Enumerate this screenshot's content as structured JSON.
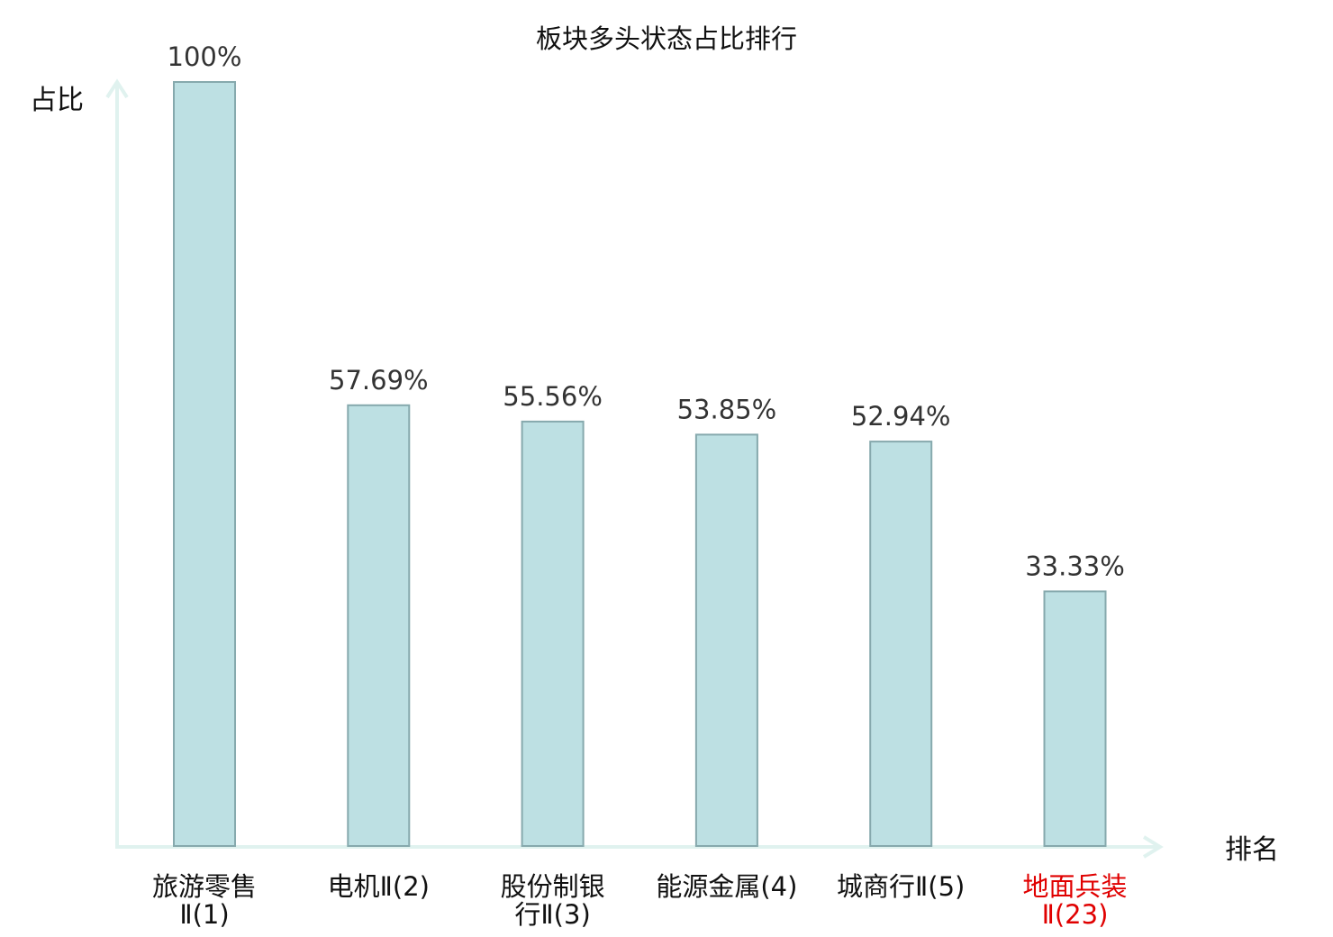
{
  "chart_data": {
    "type": "bar",
    "title": "板块多头状态占比排行",
    "ylabel": "占比",
    "xlabel": "排名",
    "ylim": [
      0,
      100
    ],
    "grid": false,
    "categories": [
      {
        "lines": [
          "旅游零售",
          "Ⅱ(1)"
        ],
        "highlight": false
      },
      {
        "lines": [
          "电机Ⅱ(2)"
        ],
        "highlight": false
      },
      {
        "lines": [
          "股份制银",
          "行Ⅱ(3)"
        ],
        "highlight": false
      },
      {
        "lines": [
          "能源金属(4)"
        ],
        "highlight": false
      },
      {
        "lines": [
          "城商行Ⅱ(5)"
        ],
        "highlight": false
      },
      {
        "lines": [
          "地面兵装",
          "Ⅱ(23)"
        ],
        "highlight": true
      }
    ],
    "values": [
      100,
      57.69,
      55.56,
      53.85,
      52.94,
      33.33
    ],
    "data_labels": [
      "100%",
      "57.69%",
      "55.56%",
      "53.85%",
      "52.94%",
      "33.33%"
    ]
  },
  "colors": {
    "bar_fill": "#bde0e3",
    "bar_stroke": "#86a9ad",
    "axis": "#e0f2ef",
    "text": "#333333",
    "title_text": "#111111",
    "highlight_text": "#e00000"
  }
}
